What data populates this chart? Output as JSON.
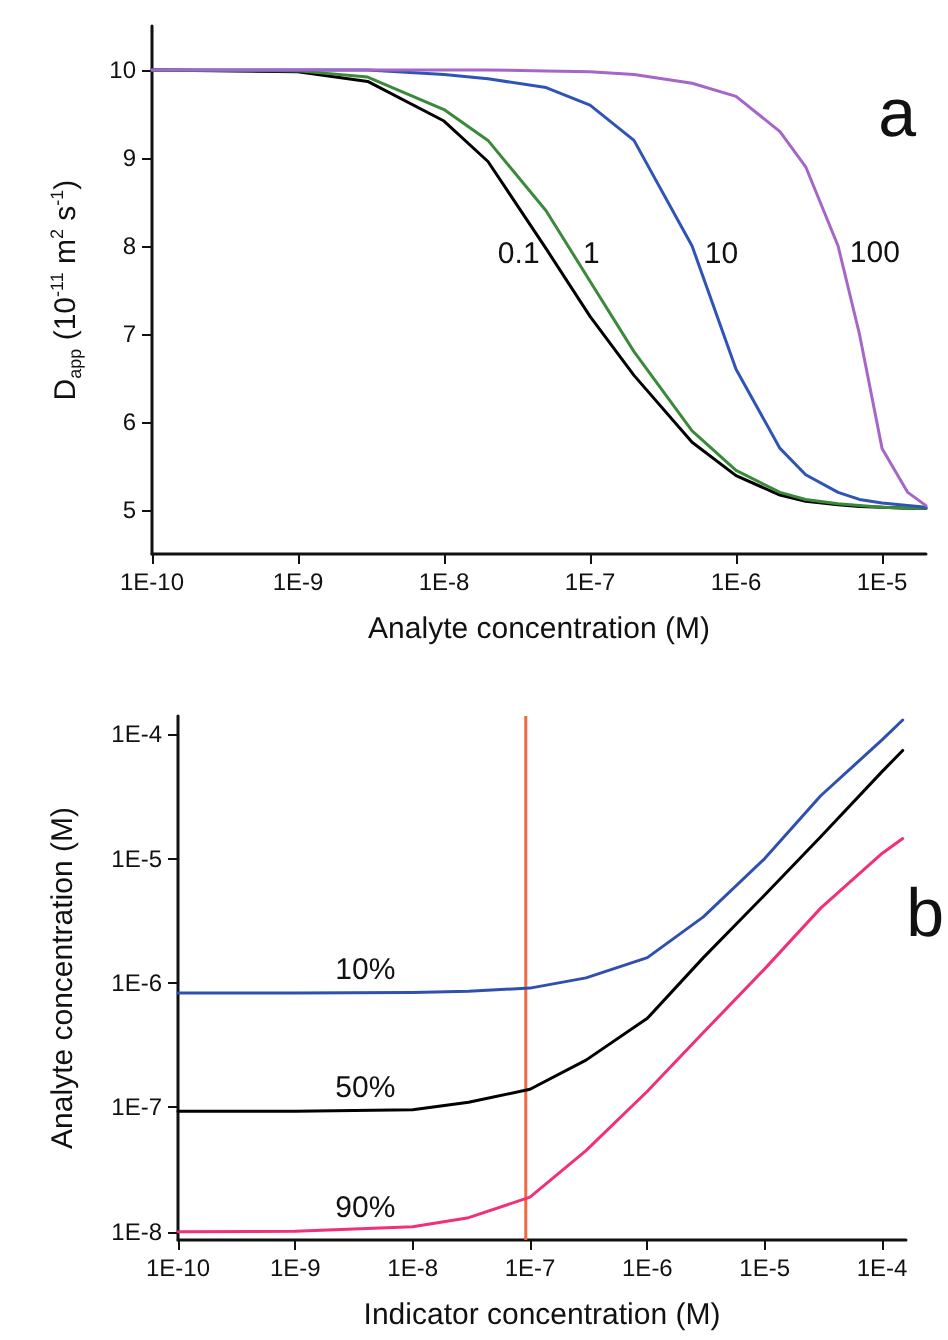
{
  "chart_data": [
    {
      "type": "line",
      "xlabel": "Analyte concentration (M)",
      "ylabel": "D$_{app}$ (10$^{-11}$ m$^{2}$ s$^{-1}$)",
      "log": "x",
      "grid": false,
      "marker": "none",
      "line_style": "solid",
      "xlim": [
        1e-10,
        2e-05
      ],
      "xticks": [
        {
          "value": 1e-10,
          "label": "1E-10"
        },
        {
          "value": 1e-09,
          "label": "1E-9"
        },
        {
          "value": 1e-08,
          "label": "1E-8"
        },
        {
          "value": 1e-07,
          "label": "1E-7"
        },
        {
          "value": 1e-06,
          "label": "1E-6"
        },
        {
          "value": 1e-05,
          "label": "1E-5"
        }
      ],
      "ylim": [
        4.5,
        10.5
      ],
      "yticks": [
        5,
        6,
        7,
        8,
        9,
        10
      ],
      "x": [
        1e-10,
        1e-09,
        3e-09,
        1e-08,
        2e-08,
        5e-08,
        1e-07,
        2e-07,
        5e-07,
        1e-06,
        2e-06,
        3e-06,
        5e-06,
        7e-06,
        1e-05,
        1.5e-05,
        2e-05
      ],
      "series": [
        {
          "name": "0.1",
          "color": "#000000",
          "values": [
            10,
            9.98,
            9.87,
            9.42,
            8.96,
            7.97,
            7.2,
            6.53,
            5.77,
            5.39,
            5.17,
            5.1,
            5.06,
            5.04,
            5.03,
            5.02,
            5.02
          ]
        },
        {
          "name": "1",
          "color": "#3a8a3a",
          "values": [
            10,
            9.99,
            9.92,
            9.55,
            9.2,
            8.4,
            7.6,
            6.8,
            5.9,
            5.45,
            5.2,
            5.12,
            5.07,
            5.05,
            5.03,
            5.02,
            5.02
          ]
        },
        {
          "name": "10",
          "color": "#2e55b5",
          "values": [
            10,
            10,
            10,
            9.95,
            9.9,
            9.8,
            9.6,
            9.2,
            8.0,
            6.6,
            5.7,
            5.4,
            5.2,
            5.12,
            5.08,
            5.05,
            5.03
          ]
        },
        {
          "name": "100",
          "color": "#a566c8",
          "values": [
            10,
            10,
            10,
            10,
            10,
            9.99,
            9.98,
            9.95,
            9.85,
            9.7,
            9.3,
            8.9,
            8.0,
            7.0,
            5.7,
            5.2,
            5.05
          ]
        }
      ],
      "annotations": [
        "a"
      ]
    },
    {
      "type": "line",
      "xlabel": "Indicator concentration (M)",
      "ylabel": "Analyte concentration (M)",
      "log": "xy",
      "grid": false,
      "marker": "none",
      "line_style": "solid",
      "xlim": [
        1e-10,
        0.00016
      ],
      "xticks": [
        {
          "value": 1e-10,
          "label": "1E-10"
        },
        {
          "value": 1e-09,
          "label": "1E-9"
        },
        {
          "value": 1e-08,
          "label": "1E-8"
        },
        {
          "value": 1e-07,
          "label": "1E-7"
        },
        {
          "value": 1e-06,
          "label": "1E-6"
        },
        {
          "value": 1e-05,
          "label": "1E-5"
        },
        {
          "value": 0.0001,
          "label": "1E-4"
        }
      ],
      "ylim": [
        8.6e-09,
        0.00014
      ],
      "yticks": [
        {
          "value": 1e-08,
          "label": "1E-8"
        },
        {
          "value": 1e-07,
          "label": "1E-7"
        },
        {
          "value": 1e-06,
          "label": "1E-6"
        },
        {
          "value": 1e-05,
          "label": "1E-5"
        },
        {
          "value": 0.0001,
          "label": "1E-4"
        }
      ],
      "x": [
        1e-10,
        1e-09,
        1e-08,
        3e-08,
        1e-07,
        3e-07,
        1e-06,
        3e-06,
        1e-05,
        3e-05,
        0.0001,
        0.00015
      ],
      "series": [
        {
          "name": "10%",
          "color": "#3050b0",
          "values": [
            8.3e-07,
            8.3e-07,
            8.4e-07,
            8.6e-07,
            9.1e-07,
            1.1e-06,
            1.6e-06,
            3.4e-06,
            1e-05,
            3.2e-05,
            9e-05,
            0.00013
          ]
        },
        {
          "name": "50%",
          "color": "#000000",
          "values": [
            9.3e-08,
            9.3e-08,
            9.6e-08,
            1.1e-07,
            1.4e-07,
            2.4e-07,
            5.2e-07,
            1.6e-06,
            5.1e-06,
            1.5e-05,
            5e-05,
            7.4e-05
          ]
        },
        {
          "name": "90%",
          "color": "#f0307a",
          "values": [
            1e-08,
            1.01e-08,
            1.1e-08,
            1.3e-08,
            1.9e-08,
            4.5e-08,
            1.35e-07,
            4e-07,
            1.3e-06,
            4e-06,
            1.1e-05,
            1.45e-05
          ]
        }
      ],
      "ref_lines": [
        {
          "axis": "x",
          "value": 9.2e-08,
          "color": "#f06a40"
        }
      ],
      "annotations": [
        "b"
      ]
    }
  ]
}
